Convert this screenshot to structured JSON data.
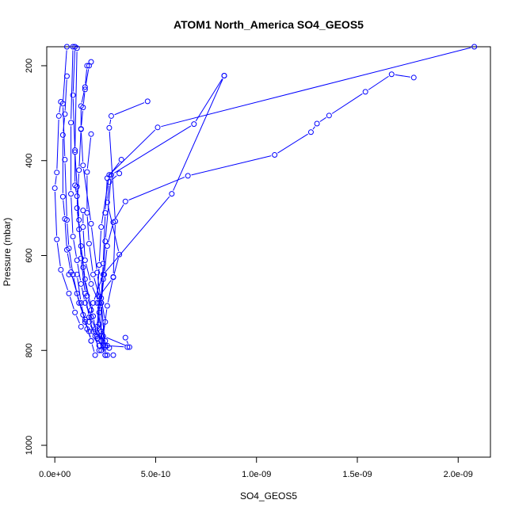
{
  "chart_data": {
    "type": "line",
    "title": "ATOM1 North_America SO4_GEOS5",
    "xlabel": "SO4_GEOS5",
    "ylabel": "Pressure (mbar)",
    "xlim": [
      -4e-11,
      2.16e-09
    ],
    "ylim": [
      1025,
      160
    ],
    "y_reversed": true,
    "x_ticks": [
      {
        "value": 0,
        "label": "0.0e+00"
      },
      {
        "value": 5e-10,
        "label": "5.0e-10"
      },
      {
        "value": 1e-09,
        "label": "1.0e-09"
      },
      {
        "value": 1.5e-09,
        "label": "1.5e-09"
      },
      {
        "value": 2e-09,
        "label": "2.0e-09"
      }
    ],
    "y_ticks": [
      {
        "value": 200,
        "label": "200"
      },
      {
        "value": 400,
        "label": "400"
      },
      {
        "value": 600,
        "label": "600"
      },
      {
        "value": 800,
        "label": "800"
      },
      {
        "value": 1000,
        "label": "1000"
      }
    ],
    "color": "#0000ff",
    "series": [
      {
        "x": [
          2.08e-09,
          5.1e-10,
          2.7e-10,
          2.3e-10,
          2.2e-10,
          2.1e-10,
          2.3e-10,
          2.4e-10,
          2.6e-10,
          2.9e-10
        ],
        "y": [
          160,
          330,
          430,
          540,
          620,
          700,
          760,
          790,
          810,
          810
        ]
      },
      {
        "x": [
          1.78e-09,
          1.67e-09,
          1.54e-09,
          1.36e-09,
          1.3e-09,
          1.27e-09,
          1.09e-09,
          6.6e-10,
          3.5e-10,
          2.9e-10,
          2.6e-10,
          2.45e-10,
          2.3e-10,
          2.5e-10
        ],
        "y": [
          225,
          218,
          255,
          305,
          322,
          340,
          388,
          432,
          486,
          530,
          580,
          640,
          700,
          790
        ]
      },
      {
        "x": [
          8.4e-10,
          6.9e-10,
          2.8e-10,
          2.5e-10,
          2.4e-10,
          2.2e-10,
          2.1e-10,
          2.5e-10
        ],
        "y": [
          221,
          323,
          430,
          570,
          650,
          720,
          770,
          810
        ]
      },
      {
        "x": [
          8.4e-10,
          5.8e-10,
          2.4e-10,
          1.9e-10,
          1.7e-10,
          2e-10,
          2.2e-10,
          2.7e-10
        ],
        "y": [
          221,
          470,
          640,
          700,
          740,
          770,
          790,
          795
        ]
      },
      {
        "x": [
          4.6e-10,
          2.8e-10,
          2.7e-10,
          3e-10,
          2.9e-10,
          2.6e-10,
          2.4e-10,
          3.7e-10,
          3.5e-10
        ],
        "y": [
          275,
          306,
          331,
          528,
          645,
          706,
          770,
          793,
          773
        ]
      },
      {
        "x": [
          3.3e-10,
          2.6e-10,
          2.5e-10,
          2.4e-10,
          2.3e-10,
          2.5e-10,
          2.3e-10,
          2.6e-10,
          3.6e-10
        ],
        "y": [
          398,
          437,
          510,
          617,
          690,
          740,
          770,
          790,
          793
        ]
      },
      {
        "x": [
          3.2e-10,
          2.7e-10,
          2.6e-10,
          3.2e-10,
          2.9e-10,
          2.2e-10,
          2.1e-10,
          2.5e-10
        ],
        "y": [
          427,
          445,
          488,
          598,
          646,
          686,
          750,
          810
        ]
      },
      {
        "x": [
          1.8e-10,
          1.6e-10,
          1.5e-10,
          1.3e-10,
          1.3e-10,
          1.4e-10,
          1.8e-10,
          2.1e-10,
          2.3e-10,
          2.5e-10
        ],
        "y": [
          192,
          200,
          245,
          285,
          334,
          410,
          533,
          636,
          700,
          793
        ]
      },
      {
        "x": [
          1.7e-10,
          1.5e-10,
          1.4e-10,
          1.3e-10,
          1.2e-10,
          1.1e-10,
          1.3e-10,
          1.5e-10,
          1.9e-10,
          2.1e-10
        ],
        "y": [
          200,
          250,
          288,
          333,
          420,
          500,
          580,
          650,
          728,
          775
        ]
      },
      {
        "x": [
          9e-11,
          8e-11,
          8e-11,
          9e-11,
          1.1e-10,
          1.3e-10,
          1.5e-10,
          1.8e-10,
          2e-10,
          2.3e-10
        ],
        "y": [
          160,
          320,
          470,
          560,
          610,
          660,
          700,
          730,
          755,
          780
        ]
      },
      {
        "x": [
          1e-10,
          9e-11,
          1e-10,
          1.1e-10,
          1.2e-10,
          1.3e-10,
          1.5e-10,
          1.7e-10,
          1.9e-10,
          2.2e-10
        ],
        "y": [
          160,
          262,
          382,
          455,
          525,
          606,
          680,
          730,
          760,
          800
        ]
      },
      {
        "x": [
          6e-11,
          4e-11,
          5e-11,
          6e-11,
          7e-11,
          9e-11,
          1.2e-10,
          1.5e-10,
          1.8e-10,
          2e-10
        ],
        "y": [
          160,
          280,
          398,
          525,
          585,
          640,
          700,
          735,
          780,
          810
        ]
      },
      {
        "x": [
          3e-11,
          2e-11,
          1e-11,
          0,
          1e-11,
          3e-11,
          7e-11,
          1e-10,
          1.3e-10
        ],
        "y": [
          276,
          306,
          425,
          458,
          566,
          630,
          680,
          720,
          750
        ]
      },
      {
        "x": [
          6e-11,
          5e-11,
          4e-11,
          4e-11,
          5e-11,
          6e-11,
          8e-11,
          1.1e-10,
          1.4e-10,
          1.6e-10
        ],
        "y": [
          222,
          302,
          346,
          476,
          523,
          588,
          635,
          680,
          725,
          755
        ]
      },
      {
        "x": [
          1.8e-10,
          1.6e-10,
          1.6e-10,
          1.7e-10,
          1.9e-10,
          2.3e-10,
          2.3e-10
        ],
        "y": [
          344,
          424,
          510,
          575,
          640,
          700,
          800
        ]
      },
      {
        "x": [
          1.1e-10,
          1e-10,
          1e-10,
          1.1e-10,
          1.2e-10,
          1.4e-10,
          1.6e-10,
          1.8e-10
        ],
        "y": [
          163,
          378,
          452,
          475,
          545,
          625,
          685,
          715
        ]
      },
      {
        "x": [
          1.4e-10,
          1.4e-10,
          1.5e-10,
          1.8e-10,
          2.2e-10,
          2.2e-10,
          2.5e-10
        ],
        "y": [
          505,
          540,
          610,
          660,
          700,
          745,
          780
        ]
      },
      {
        "x": [
          7e-11,
          9e-11,
          1.1e-10,
          1.3e-10,
          1.5e-10,
          1.7e-10,
          1.8e-10
        ],
        "y": [
          640,
          640,
          640,
          700,
          740,
          760,
          780
        ]
      }
    ]
  }
}
